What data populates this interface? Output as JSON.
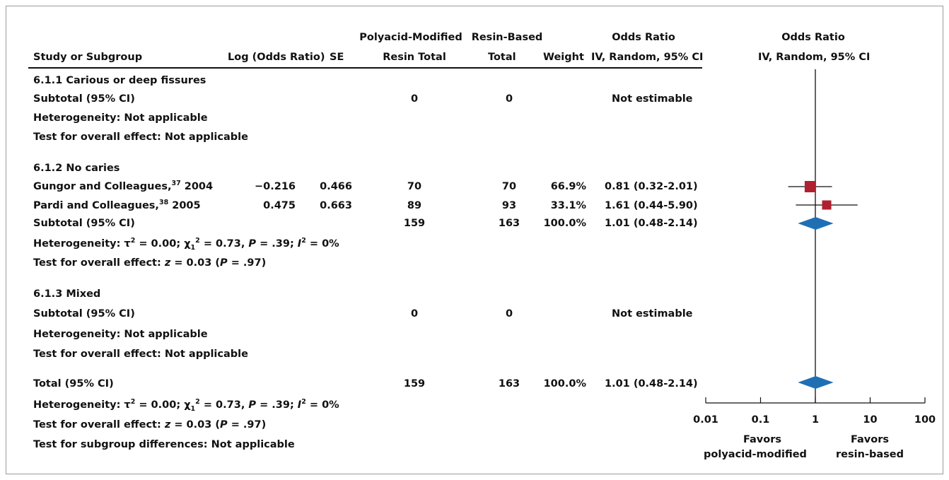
{
  "header": {
    "col_study": "Study or Subgroup",
    "col_logor": "Log (Odds Ratio)",
    "col_se": "SE",
    "group1_line1": "Polyacid-Modified",
    "group1_line2": "Resin Total",
    "group2_line1": "Resin-Based",
    "group2_line2": "Total",
    "col_weight": "Weight",
    "or_line1": "Odds Ratio",
    "or_line2": "IV, Random, 95% CI",
    "plot_line1": "Odds Ratio",
    "plot_line2": "IV, Random, 95% CI"
  },
  "subgroups": [
    {
      "title": "6.1.1 Carious or deep fissures",
      "subtotal": {
        "label": "Subtotal (95% CI)",
        "total1": "0",
        "total2": "0",
        "weight": "",
        "or": "Not estimable"
      },
      "heterogeneity": "Heterogeneity: Not applicable",
      "overall": "Test for overall effect: Not applicable"
    },
    {
      "title": "6.1.2 No caries",
      "studies": [
        {
          "name": "Gungor and Colleagues,",
          "ref": "37",
          "year": " 2004",
          "logor": "−0.216",
          "se": "0.466",
          "total1": "70",
          "total2": "70",
          "weight": "66.9%",
          "or": "0.81 (0.32-2.01)"
        },
        {
          "name": "Pardi and Colleagues,",
          "ref": "38",
          "year": " 2005",
          "logor": "0.475",
          "se": "0.663",
          "total1": "89",
          "total2": "93",
          "weight": "33.1%",
          "or": "1.61 (0.44-5.90)"
        }
      ],
      "subtotal": {
        "label": "Subtotal (95% CI)",
        "total1": "159",
        "total2": "163",
        "weight": "100.0%",
        "or": "1.01 (0.48-2.14)"
      },
      "heterogeneity": {
        "prefix": "Heterogeneity: ",
        "tau": "τ",
        "tau_sup": "2",
        "tau_eq": " = 0.00; ",
        "chi": "χ",
        "chi_sub": "1",
        "chi_sup": "2",
        "chi_eq": " = 0.73, ",
        "p": "P",
        "p_eq": " = .39; ",
        "i": "I",
        "i_sup": "2",
        "i_eq": " = 0%"
      },
      "overall": {
        "prefix": "Test for overall effect: ",
        "z": "z",
        "z_eq": " = 0.03 (",
        "p": "P",
        "p_eq": " = .97)"
      }
    },
    {
      "title": "6.1.3 Mixed",
      "subtotal": {
        "label": "Subtotal (95% CI)",
        "total1": "0",
        "total2": "0",
        "weight": "",
        "or": "Not estimable"
      },
      "heterogeneity": "Heterogeneity: Not applicable",
      "overall": "Test for overall effect: Not applicable"
    }
  ],
  "total": {
    "label": "Total (95% CI)",
    "total1": "159",
    "total2": "163",
    "weight": "100.0%",
    "or": "1.01 (0.48-2.14)",
    "heterogeneity": {
      "prefix": "Heterogeneity: ",
      "tau": "τ",
      "tau_sup": "2",
      "tau_eq": " = 0.00; ",
      "chi": "χ",
      "chi_sub": "1",
      "chi_sup": "2",
      "chi_eq": " = 0.73, ",
      "p": "P",
      "p_eq": " = .39; ",
      "i": "I",
      "i_sup": "2",
      "i_eq": " = 0%"
    },
    "overall": {
      "prefix": "Test for overall effect: ",
      "z": "z",
      "z_eq": " = 0.03 (",
      "p": "P",
      "p_eq": " = .97)"
    },
    "subgroup_diff": "Test for subgroup differences: Not applicable"
  },
  "chart_data": {
    "type": "scatter",
    "subtype": "forest-plot",
    "x_scale": "log",
    "xlim": [
      0.01,
      100
    ],
    "ticks": [
      "0.01",
      "0.1",
      "1",
      "10",
      "100"
    ],
    "tick_values": [
      0.01,
      0.1,
      1,
      10,
      100
    ],
    "reference_line": 1,
    "favors_left": [
      "Favors",
      "polyacid-modified"
    ],
    "favors_right": [
      "Favors",
      "resin-based"
    ],
    "studies": [
      {
        "name": "Gungor and Colleagues, 2004",
        "or": 0.81,
        "lower": 0.32,
        "upper": 2.01,
        "weight": 66.9
      },
      {
        "name": "Pardi and Colleagues, 2005",
        "or": 1.61,
        "lower": 0.44,
        "upper": 5.9,
        "weight": 33.1
      }
    ],
    "summaries": [
      {
        "name": "Subtotal 6.1.2 No caries",
        "or": 1.01,
        "lower": 0.48,
        "upper": 2.14
      },
      {
        "name": "Total",
        "or": 1.01,
        "lower": 0.48,
        "upper": 2.14
      }
    ],
    "colors": {
      "study_marker": "#b0202e",
      "diamond": "#1f6fb5",
      "line": "#111111"
    }
  }
}
